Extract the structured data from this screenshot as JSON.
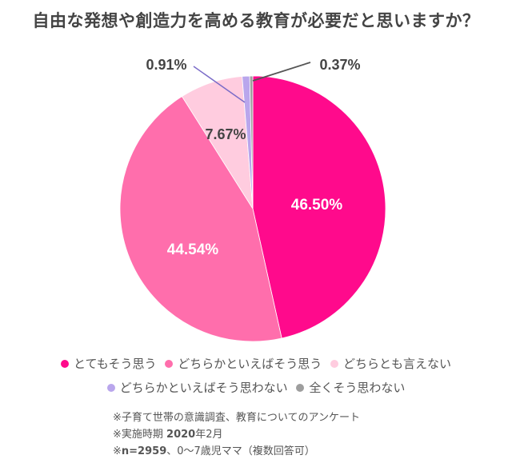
{
  "chart_data": {
    "type": "pie",
    "title": "自由な発想や創造力を高める教育が必要だと思いますか？",
    "categories": [
      "とてもそう思う",
      "どちらかといえばそう思う",
      "どちらとも言えない",
      "どちらかといえばそう思わない",
      "全くそう思わない"
    ],
    "values": [
      46.5,
      44.54,
      7.67,
      0.91,
      0.37
    ],
    "labels": [
      "46.50%",
      "44.54%",
      "7.67%",
      "0.91%",
      "0.37%"
    ],
    "colors": [
      "#ff0a8c",
      "#ff6eac",
      "#ffccdf",
      "#b9a6ec",
      "#9e9e9e"
    ],
    "start_angle": "12 o'clock",
    "direction": "clockwise",
    "legend_position": "bottom"
  },
  "title": "自由な発想や創造力を高める教育が必要だと思いますか？",
  "legend": [
    {
      "label": "とてもそう思う",
      "color": "#ff0a8c"
    },
    {
      "label": "どちらかといえばそう思う",
      "color": "#ff6eac"
    },
    {
      "label": "どちらとも言えない",
      "color": "#ffccdf"
    },
    {
      "label": "どちらかといえばそう思わない",
      "color": "#b9a6ec"
    },
    {
      "label": "全くそう思わない",
      "color": "#9e9e9e"
    }
  ],
  "slice_labels": [
    "46.50%",
    "44.54%",
    "7.67%",
    "0.91%",
    "0.37%"
  ],
  "notes": {
    "line1": "※子育て世帯の意識調査、教育についてのアンケート",
    "line2_prefix": "※実施時期 ",
    "line2_bold": "2020",
    "line2_suffix": "年2月",
    "line3_prefix": "※",
    "line3_bold": "n=2959",
    "line3_mid": "、0〜7歳児ママ（複数回答可）"
  }
}
